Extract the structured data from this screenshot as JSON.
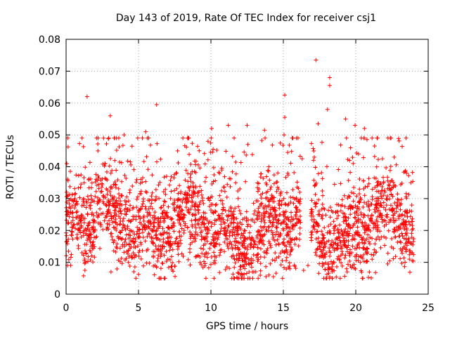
{
  "chart_data": {
    "type": "scatter",
    "title": "Day 143 of 2019, Rate Of TEC Index for receiver csj1",
    "xlabel": "GPS time / hours",
    "ylabel": "ROTI / TECUs",
    "xlim": [
      0,
      25
    ],
    "ylim": [
      0,
      0.08
    ],
    "xticks": [
      0,
      5,
      10,
      15,
      20,
      25
    ],
    "yticks": [
      0,
      0.01,
      0.02,
      0.03,
      0.04,
      0.05,
      0.06,
      0.07,
      0.08
    ],
    "xtick_labels": [
      "0",
      "5",
      "10",
      "15",
      "20",
      "25"
    ],
    "ytick_labels": [
      "0",
      "0.01",
      "0.02",
      "0.03",
      "0.04",
      "0.05",
      "0.06",
      "0.07",
      "0.08"
    ],
    "grid": true,
    "marker": "+",
    "color": "#ff0000",
    "gap": [
      16.2,
      16.9
    ],
    "series": [
      {
        "name": "ROTI",
        "points": [
          [
            1.45,
            0.062
          ],
          [
            3.05,
            0.056
          ],
          [
            6.25,
            0.0595
          ],
          [
            17.25,
            0.0735
          ],
          [
            18.2,
            0.068
          ],
          [
            18.2,
            0.0655
          ],
          [
            18.05,
            0.058
          ],
          [
            15.1,
            0.0625
          ],
          [
            15.1,
            0.0555
          ],
          [
            15.3,
            0.0445
          ],
          [
            19.3,
            0.055
          ],
          [
            19.95,
            0.053
          ],
          [
            10.05,
            0.052
          ],
          [
            11.2,
            0.053
          ],
          [
            12.5,
            0.053
          ],
          [
            13.7,
            0.0515
          ],
          [
            5.5,
            0.051
          ],
          [
            4.0,
            0.05
          ],
          [
            17.4,
            0.0535
          ],
          [
            2.2,
            0.045
          ],
          [
            9.8,
            0.048
          ],
          [
            10.15,
            0.0455
          ],
          [
            12.55,
            0.047
          ],
          [
            15.05,
            0.05
          ],
          [
            20.6,
            0.052
          ],
          [
            22.65,
            0.043
          ],
          [
            23.5,
            0.038
          ],
          [
            23.8,
            0.035
          ],
          [
            23.9,
            0.013
          ],
          [
            23.7,
            0.011
          ],
          [
            0.05,
            0.041
          ],
          [
            0.1,
            0.009
          ],
          [
            13.8,
            0.0055
          ],
          [
            14.0,
            0.006
          ],
          [
            1.3,
            0.0075
          ],
          [
            3.1,
            0.007
          ],
          [
            16.3,
            0.0425
          ],
          [
            16.4,
            0.0075
          ],
          [
            16.7,
            0.009
          ],
          [
            7.7,
            0.045
          ]
        ]
      }
    ]
  }
}
